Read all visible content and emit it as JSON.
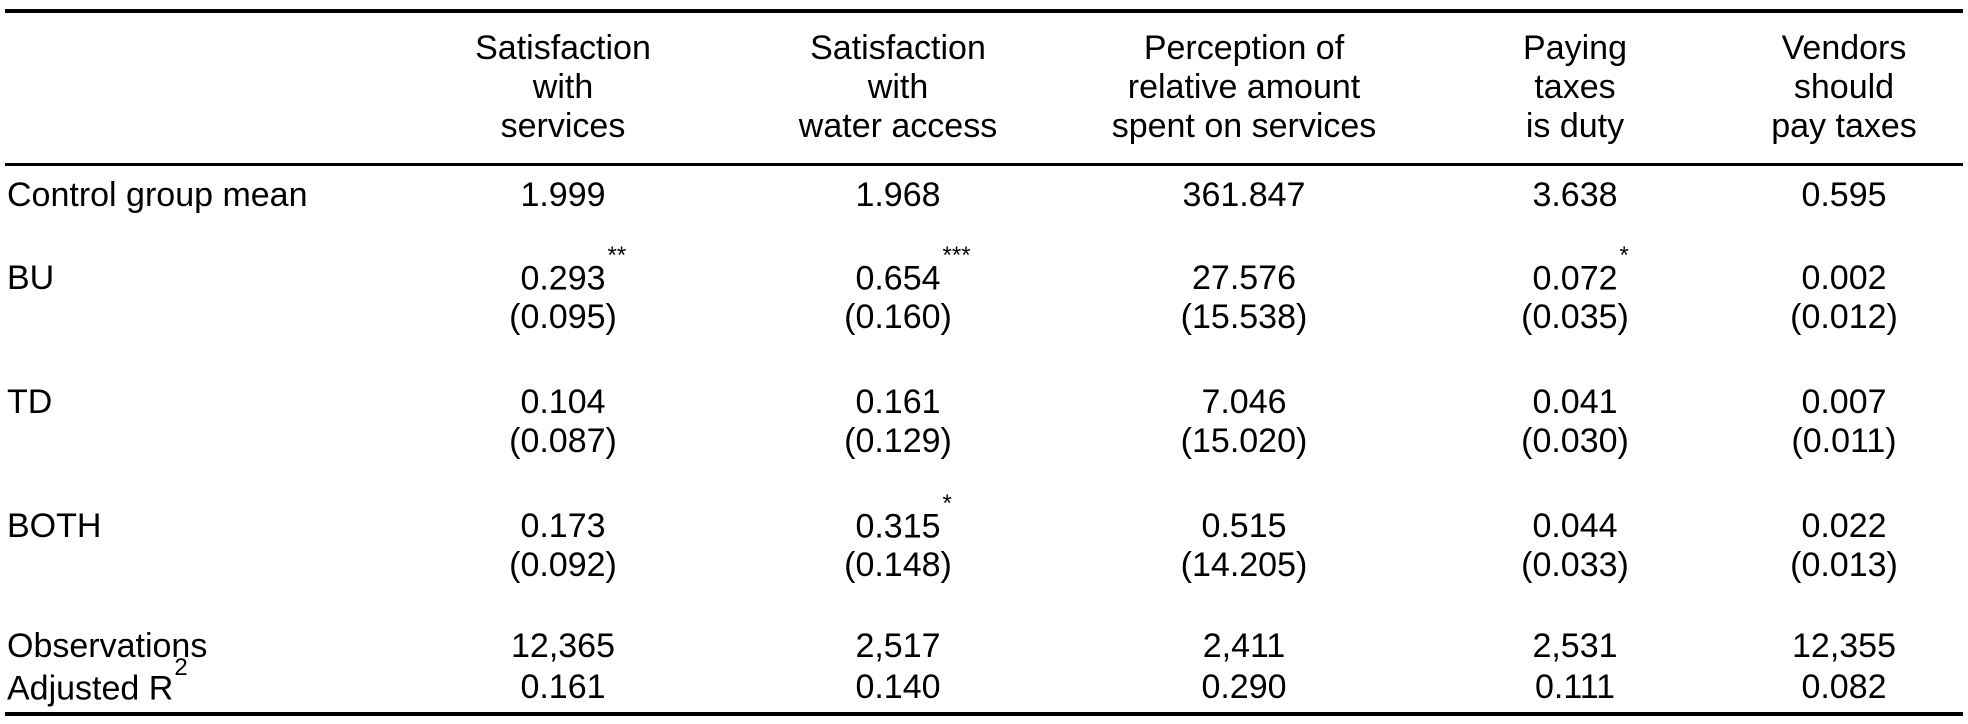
{
  "table": {
    "col_headers": [
      "Satisfaction\nwith\nservices",
      "Satisfaction\nwith\nwater access",
      "Perception of\nrelative amount\nspent on services",
      "Paying\ntaxes\nis duty",
      "Vendors\nshould\npay taxes"
    ],
    "control_mean": {
      "label": "Control group mean",
      "values": [
        "1.999",
        "1.968",
        "361.847",
        "3.638",
        "0.595"
      ]
    },
    "coef_groups": [
      {
        "label": "BU",
        "estimates": [
          "0.293",
          "0.654",
          "27.576",
          "0.072",
          "0.002"
        ],
        "stars": [
          "**",
          "***",
          "",
          "*",
          ""
        ],
        "se": [
          "(0.095)",
          "(0.160)",
          "(15.538)",
          "(0.035)",
          "(0.012)"
        ]
      },
      {
        "label": "TD",
        "estimates": [
          "0.104",
          "0.161",
          "7.046",
          "0.041",
          "0.007"
        ],
        "stars": [
          "",
          "",
          "",
          "",
          ""
        ],
        "se": [
          "(0.087)",
          "(0.129)",
          "(15.020)",
          "(0.030)",
          "(0.011)"
        ]
      },
      {
        "label": "BOTH",
        "estimates": [
          "0.173",
          "0.315",
          "0.515",
          "0.044",
          "0.022"
        ],
        "stars": [
          "",
          "*",
          "",
          "",
          ""
        ],
        "se": [
          "(0.092)",
          "(0.148)",
          "(14.205)",
          "(0.033)",
          "(0.013)"
        ]
      }
    ],
    "observations": {
      "label": "Observations",
      "values": [
        "12,365",
        "2,517",
        "2,411",
        "2,531",
        "12,355"
      ]
    },
    "adjusted_r2": {
      "label_base": "Adjusted R",
      "label_superscript": "2",
      "values": [
        "0.161",
        "0.140",
        "0.290",
        "0.111",
        "0.082"
      ]
    }
  }
}
